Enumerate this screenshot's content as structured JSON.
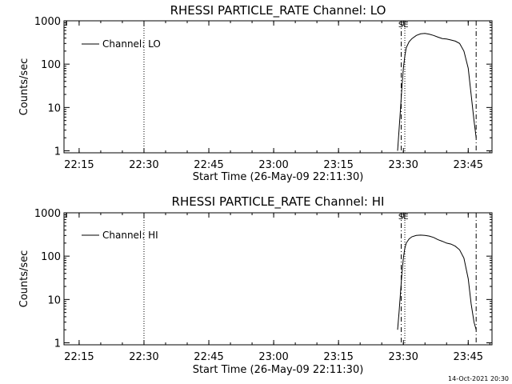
{
  "footer": {
    "timestamp": "14-Oct-2021 20:30"
  },
  "chart_data": [
    {
      "type": "line",
      "title": "RHESSI PARTICLE_RATE Channel: LO",
      "xlabel": "Start Time (26-May-09 22:11:30)",
      "ylabel": "Counts/sec",
      "yscale": "log",
      "xlim": [
        "22:11:30",
        "23:50:30"
      ],
      "ylim": [
        0.9,
        1000
      ],
      "xticks": [
        "22:15",
        "22:30",
        "22:45",
        "23:00",
        "23:15",
        "23:30",
        "23:45"
      ],
      "yticks": [
        1,
        10,
        100,
        1000
      ],
      "ytick_labels": [
        "1",
        "10",
        "100",
        "1000"
      ],
      "grid": false,
      "legend": {
        "placement": "top-left",
        "entries": [
          "Channel: LO"
        ]
      },
      "series": [
        {
          "name": "Channel: LO",
          "x": [
            "23:28:40",
            "23:29:00",
            "23:29:20",
            "23:29:40",
            "23:30:00",
            "23:30:20",
            "23:30:40",
            "23:31:20",
            "23:32:00",
            "23:33:00",
            "23:34:00",
            "23:35:00",
            "23:36:00",
            "23:37:00",
            "23:38:00",
            "23:39:00",
            "23:40:00",
            "23:41:00",
            "23:42:00",
            "23:43:00",
            "23:44:00",
            "23:45:00",
            "23:45:40",
            "23:46:20",
            "23:46:50"
          ],
          "y": [
            1,
            3,
            9,
            30,
            80,
            150,
            240,
            330,
            390,
            460,
            500,
            510,
            490,
            460,
            420,
            390,
            380,
            360,
            340,
            300,
            200,
            80,
            20,
            5,
            2
          ]
        }
      ],
      "vlines": [
        {
          "x": "22:30:00",
          "style": "dotted"
        },
        {
          "x": "23:29:30",
          "style": "dash-dot"
        },
        {
          "x": "23:30:20",
          "style": "dotted"
        },
        {
          "x": "23:46:50",
          "style": "dash-dot"
        }
      ],
      "annotations": [
        {
          "text": "SE",
          "x": "23:30:00"
        }
      ]
    },
    {
      "type": "line",
      "title": "RHESSI PARTICLE_RATE Channel: HI",
      "xlabel": "Start Time (26-May-09 22:11:30)",
      "ylabel": "Counts/sec",
      "yscale": "log",
      "xlim": [
        "22:11:30",
        "23:50:30"
      ],
      "ylim": [
        0.9,
        1000
      ],
      "xticks": [
        "22:15",
        "22:30",
        "22:45",
        "23:00",
        "23:15",
        "23:30",
        "23:45"
      ],
      "yticks": [
        1,
        10,
        100,
        1000
      ],
      "ytick_labels": [
        "1",
        "10",
        "100",
        "1000"
      ],
      "grid": false,
      "legend": {
        "placement": "top-left",
        "entries": [
          "Channel: HI"
        ]
      },
      "series": [
        {
          "name": "Channel: HI",
          "x": [
            "23:28:40",
            "23:29:00",
            "23:29:20",
            "23:29:40",
            "23:30:00",
            "23:30:20",
            "23:30:40",
            "23:31:20",
            "23:32:00",
            "23:33:00",
            "23:34:00",
            "23:35:00",
            "23:36:00",
            "23:37:00",
            "23:38:00",
            "23:39:00",
            "23:40:00",
            "23:41:00",
            "23:42:00",
            "23:43:00",
            "23:44:00",
            "23:45:00",
            "23:45:40",
            "23:46:20",
            "23:46:50"
          ],
          "y": [
            2,
            5,
            14,
            40,
            90,
            150,
            200,
            250,
            280,
            300,
            305,
            300,
            290,
            270,
            240,
            220,
            200,
            190,
            170,
            140,
            90,
            30,
            8,
            3,
            2
          ]
        }
      ],
      "vlines": [
        {
          "x": "22:30:00",
          "style": "dotted"
        },
        {
          "x": "23:29:30",
          "style": "dash-dot"
        },
        {
          "x": "23:30:20",
          "style": "dotted"
        },
        {
          "x": "23:46:50",
          "style": "dash-dot"
        }
      ],
      "annotations": [
        {
          "text": "SE",
          "x": "23:30:00"
        }
      ]
    }
  ]
}
